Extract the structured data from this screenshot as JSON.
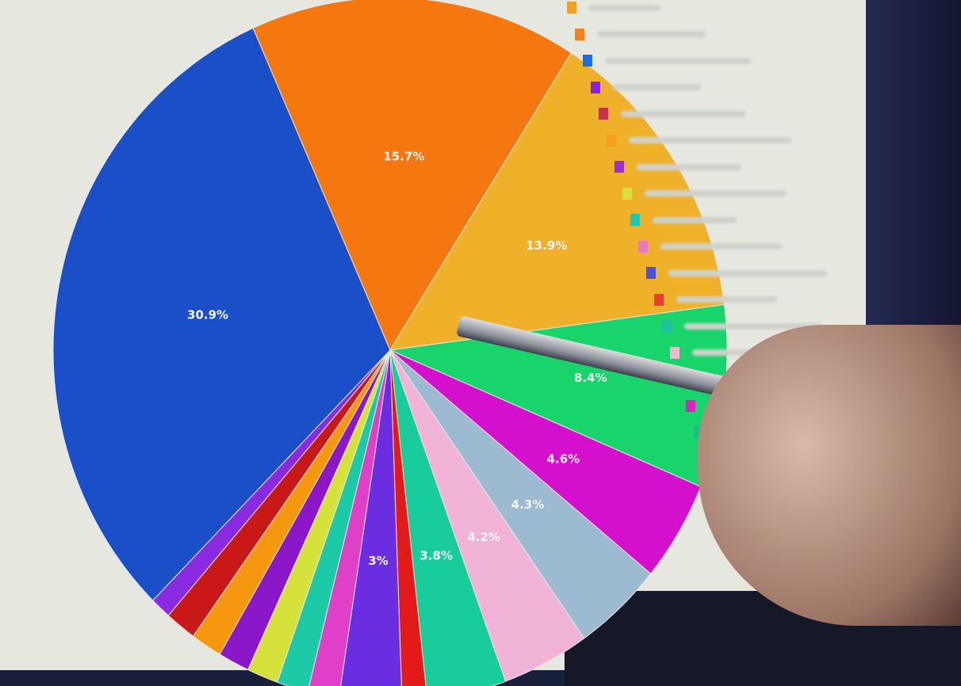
{
  "chart_data": {
    "type": "pie",
    "start_angle_deg": -24,
    "slices": [
      {
        "value": 15.7,
        "label": "15.7%",
        "color": "#f5770f"
      },
      {
        "value": 13.9,
        "label": "13.9%",
        "color": "#f0b12a"
      },
      {
        "value": 8.4,
        "label": "8.4%",
        "color": "#19d46a"
      },
      {
        "value": 4.6,
        "label": "4.6%",
        "color": "#d410cc"
      },
      {
        "value": 4.3,
        "label": "4.3%",
        "color": "#9cbad0"
      },
      {
        "value": 4.2,
        "label": "4.2%",
        "color": "#f2b4d6"
      },
      {
        "value": 3.8,
        "label": "3.8%",
        "color": "#18cc9c"
      },
      {
        "value": 1.2,
        "label": "",
        "color": "#e21a1a"
      },
      {
        "value": 3.0,
        "label": "3%",
        "color": "#6a2ee0"
      },
      {
        "value": 1.5,
        "label": "",
        "color": "#e040c8"
      },
      {
        "value": 1.5,
        "label": "",
        "color": "#1ccaa8"
      },
      {
        "value": 1.5,
        "label": "",
        "color": "#d6e23c"
      },
      {
        "value": 1.5,
        "label": "",
        "color": "#8a18c8"
      },
      {
        "value": 1.5,
        "label": "",
        "color": "#f5980f"
      },
      {
        "value": 1.5,
        "label": "",
        "color": "#c81818"
      },
      {
        "value": 1.0,
        "label": "",
        "color": "#8a2ae0"
      },
      {
        "value": 30.9,
        "label": "30.9%",
        "color": "#1a4fc8"
      }
    ],
    "legend_placement": "right",
    "legend_colors": [
      "#f5a020",
      "#f5801f",
      "#1a6ee0",
      "#8a20d8",
      "#c83050",
      "#f5a020",
      "#9a30d0",
      "#d8e040",
      "#20c8b0",
      "#e878c8",
      "#4a50e0",
      "#e84030",
      "#20c0a0",
      "#f0b8d0",
      "#e8e8e8",
      "#e020c0",
      "#18c080"
    ]
  }
}
